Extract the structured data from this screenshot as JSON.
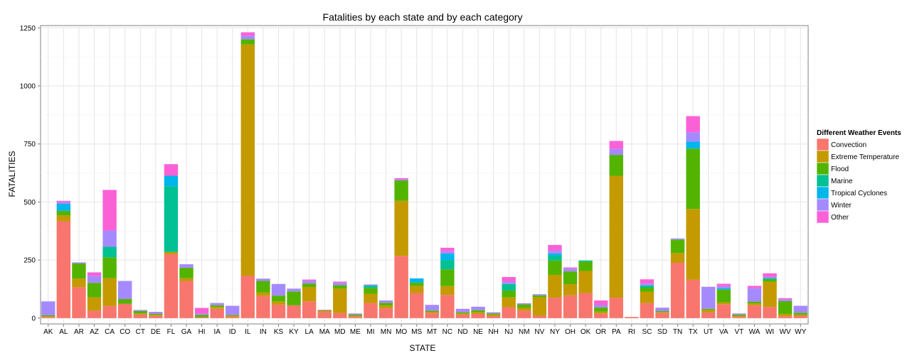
{
  "chart_data": {
    "type": "bar",
    "stacked": true,
    "title": "Fatalities by each state and by each category",
    "xlabel": "STATE",
    "ylabel": "FATALITIES",
    "ylim": [
      -25,
      1260
    ],
    "yticks": [
      0,
      250,
      500,
      750,
      1000,
      1250
    ],
    "grid": true,
    "legend_position": "right",
    "legend_title": "Different Weather Events",
    "categories": [
      "AK",
      "AL",
      "AR",
      "AZ",
      "CA",
      "CO",
      "CT",
      "DE",
      "FL",
      "GA",
      "HI",
      "IA",
      "ID",
      "IL",
      "IN",
      "KS",
      "KY",
      "LA",
      "MA",
      "MD",
      "ME",
      "MI",
      "MN",
      "MO",
      "MS",
      "MT",
      "NC",
      "ND",
      "NE",
      "NH",
      "NJ",
      "NM",
      "NV",
      "NY",
      "OH",
      "OK",
      "OR",
      "PA",
      "RI",
      "SC",
      "SD",
      "TN",
      "TX",
      "UT",
      "VA",
      "VT",
      "WA",
      "WI",
      "WV",
      "WY"
    ],
    "series": [
      {
        "name": "Convection",
        "color": "#F8766D",
        "values": [
          5,
          417,
          133,
          32,
          52,
          62,
          15,
          10,
          275,
          160,
          4,
          40,
          5,
          183,
          95,
          58,
          55,
          72,
          25,
          22,
          6,
          65,
          42,
          268,
          108,
          22,
          100,
          15,
          18,
          10,
          47,
          32,
          10,
          88,
          98,
          108,
          20,
          88,
          5,
          65,
          22,
          238,
          165,
          25,
          60,
          5,
          55,
          48,
          8,
          10
        ]
      },
      {
        "name": "Extreme Temperature",
        "color": "#C49A00",
        "values": [
          2,
          25,
          37,
          58,
          120,
          0,
          5,
          4,
          10,
          12,
          0,
          8,
          5,
          995,
          15,
          14,
          0,
          62,
          8,
          105,
          4,
          40,
          12,
          237,
          30,
          5,
          38,
          5,
          8,
          5,
          42,
          12,
          80,
          98,
          48,
          95,
          8,
          525,
          0,
          48,
          4,
          42,
          305,
          10,
          8,
          5,
          8,
          108,
          10,
          5
        ]
      },
      {
        "name": "Flood",
        "color": "#53B400",
        "values": [
          5,
          20,
          65,
          62,
          90,
          20,
          10,
          5,
          0,
          45,
          10,
          7,
          3,
          23,
          50,
          25,
          60,
          15,
          0,
          15,
          5,
          25,
          12,
          88,
          15,
          5,
          72,
          5,
          8,
          5,
          30,
          15,
          8,
          62,
          55,
          40,
          18,
          90,
          0,
          18,
          4,
          58,
          260,
          5,
          55,
          5,
          8,
          12,
          55,
          8
        ]
      },
      {
        "name": "Marine",
        "color": "#00C094",
        "values": [
          0,
          0,
          0,
          0,
          45,
          0,
          0,
          0,
          283,
          0,
          0,
          0,
          0,
          0,
          0,
          0,
          0,
          0,
          0,
          0,
          0,
          10,
          0,
          0,
          0,
          0,
          40,
          0,
          0,
          0,
          28,
          0,
          0,
          22,
          0,
          5,
          0,
          0,
          0,
          10,
          0,
          0,
          0,
          0,
          0,
          0,
          0,
          0,
          0,
          0
        ]
      },
      {
        "name": "Tropical Cyclones",
        "color": "#00B6EB",
        "values": [
          0,
          30,
          0,
          0,
          0,
          0,
          0,
          0,
          45,
          0,
          0,
          0,
          0,
          0,
          0,
          0,
          0,
          0,
          0,
          0,
          0,
          0,
          0,
          0,
          18,
          0,
          28,
          0,
          0,
          0,
          0,
          0,
          0,
          8,
          0,
          0,
          0,
          0,
          0,
          0,
          0,
          0,
          30,
          0,
          5,
          0,
          0,
          5,
          0,
          0
        ]
      },
      {
        "name": "Winter",
        "color": "#A58AFF",
        "values": [
          60,
          8,
          5,
          30,
          70,
          78,
          5,
          8,
          0,
          15,
          5,
          10,
          40,
          15,
          10,
          50,
          12,
          12,
          3,
          10,
          5,
          5,
          10,
          5,
          0,
          25,
          10,
          15,
          15,
          5,
          10,
          5,
          5,
          12,
          12,
          0,
          10,
          25,
          0,
          8,
          15,
          5,
          40,
          95,
          10,
          5,
          58,
          5,
          8,
          30
        ]
      },
      {
        "name": "Other",
        "color": "#FB61D7",
        "values": [
          0,
          5,
          0,
          15,
          175,
          0,
          0,
          0,
          50,
          0,
          25,
          0,
          0,
          15,
          0,
          0,
          0,
          5,
          0,
          5,
          0,
          0,
          0,
          5,
          0,
          0,
          15,
          0,
          0,
          0,
          20,
          0,
          0,
          25,
          5,
          0,
          20,
          35,
          0,
          18,
          0,
          0,
          70,
          0,
          10,
          0,
          10,
          15,
          5,
          0
        ]
      }
    ],
    "legend_items": [
      "Convection",
      "Extreme Temperature",
      "Flood",
      "Marine",
      "Tropical Cyclones",
      "Winter",
      "Other"
    ]
  }
}
